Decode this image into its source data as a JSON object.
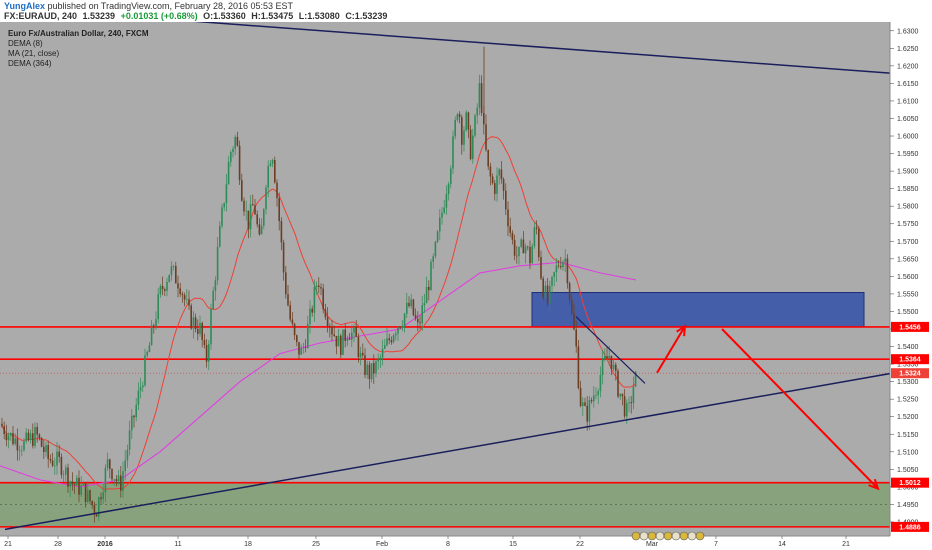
{
  "header": {
    "user": "YungAlex",
    "published": "published on TradingView.com, February 28, 2016 05:53 EST",
    "symbol": "FX:EURAUD, 240",
    "last": "1.53239",
    "change": "+0.01031 (+0.68%)",
    "open": "O:1.53360",
    "high": "H:1.53475",
    "low": "L:1.53080",
    "close": "C:1.53239"
  },
  "legend": {
    "title": "Euro Fx/Australian Dollar, 240, FXCM",
    "ind1": "DEMA (8)",
    "ind2": "MA (21, close)",
    "ind3": "DEMA (364)"
  },
  "colors": {
    "background": "#ababab",
    "up": "#2e8b57",
    "down": "#6b3e21",
    "red": "#ff0000",
    "ma": "#ee4036",
    "dema364": "#e040e0",
    "trend": "#1a1f5c",
    "zone_blue": "#3350a8",
    "zone_green": "#6b9a5a"
  },
  "chart_data": {
    "type": "candlestick",
    "ylim": [
      1.486,
      1.6325
    ],
    "yticks": [
      1.63,
      1.625,
      1.62,
      1.615,
      1.61,
      1.605,
      1.6,
      1.595,
      1.59,
      1.585,
      1.58,
      1.575,
      1.57,
      1.565,
      1.56,
      1.555,
      1.55,
      1.545,
      1.54,
      1.535,
      1.53,
      1.525,
      1.52,
      1.515,
      1.51,
      1.505,
      1.5,
      1.495,
      1.49
    ],
    "xticks": [
      "21",
      "28",
      "2016",
      "11",
      "18",
      "25",
      "Feb",
      "8",
      "15",
      "22",
      "Mar",
      "7",
      "14",
      "21"
    ],
    "price_labels": [
      {
        "value": 1.5456,
        "text": "1.5456",
        "color": "#ff0000"
      },
      {
        "value": 1.5364,
        "text": "1.5364",
        "color": "#ff0000"
      },
      {
        "value": 1.5324,
        "text": "1.5324",
        "color": "#ee4036"
      },
      {
        "value": 1.5012,
        "text": "1.5012",
        "color": "#ff0000"
      },
      {
        "value": 1.4886,
        "text": "1.4886",
        "color": "#ff0000"
      }
    ],
    "horizontal_lines": [
      1.5456,
      1.5364,
      1.5012,
      1.4886
    ],
    "price_path": [
      [
        0,
        1.518
      ],
      [
        12,
        1.514
      ],
      [
        24,
        1.512
      ],
      [
        36,
        1.515
      ],
      [
        48,
        1.508
      ],
      [
        60,
        1.507
      ],
      [
        72,
        1.501
      ],
      [
        84,
        1.499
      ],
      [
        96,
        1.493
      ],
      [
        108,
        1.507
      ],
      [
        120,
        1.5
      ],
      [
        130,
        1.515
      ],
      [
        140,
        1.528
      ],
      [
        150,
        1.541
      ],
      [
        160,
        1.555
      ],
      [
        170,
        1.562
      ],
      [
        180,
        1.558
      ],
      [
        190,
        1.548
      ],
      [
        200,
        1.545
      ],
      [
        206,
        1.535
      ],
      [
        212,
        1.552
      ],
      [
        218,
        1.568
      ],
      [
        224,
        1.582
      ],
      [
        230,
        1.595
      ],
      [
        236,
        1.6
      ],
      [
        242,
        1.584
      ],
      [
        248,
        1.575
      ],
      [
        254,
        1.581
      ],
      [
        260,
        1.568
      ],
      [
        266,
        1.588
      ],
      [
        272,
        1.597
      ],
      [
        278,
        1.58
      ],
      [
        284,
        1.56
      ],
      [
        290,
        1.548
      ],
      [
        296,
        1.54
      ],
      [
        302,
        1.538
      ],
      [
        310,
        1.548
      ],
      [
        318,
        1.56
      ],
      [
        324,
        1.552
      ],
      [
        332,
        1.545
      ],
      [
        340,
        1.54
      ],
      [
        348,
        1.545
      ],
      [
        356,
        1.542
      ],
      [
        362,
        1.535
      ],
      [
        370,
        1.532
      ],
      [
        378,
        1.535
      ],
      [
        386,
        1.54
      ],
      [
        394,
        1.545
      ],
      [
        402,
        1.548
      ],
      [
        410,
        1.552
      ],
      [
        418,
        1.545
      ],
      [
        426,
        1.555
      ],
      [
        434,
        1.565
      ],
      [
        440,
        1.575
      ],
      [
        446,
        1.585
      ],
      [
        452,
        1.595
      ],
      [
        458,
        1.61
      ],
      [
        462,
        1.6
      ],
      [
        466,
        1.605
      ],
      [
        470,
        1.595
      ],
      [
        476,
        1.605
      ],
      [
        480,
        1.615
      ],
      [
        484,
        1.6
      ],
      [
        488,
        1.59
      ],
      [
        494,
        1.585
      ],
      [
        500,
        1.59
      ],
      [
        506,
        1.58
      ],
      [
        512,
        1.57
      ],
      [
        518,
        1.565
      ],
      [
        524,
        1.57
      ],
      [
        530,
        1.565
      ],
      [
        536,
        1.575
      ],
      [
        542,
        1.558
      ],
      [
        548,
        1.552
      ],
      [
        554,
        1.56
      ],
      [
        560,
        1.565
      ],
      [
        566,
        1.565
      ],
      [
        572,
        1.548
      ],
      [
        576,
        1.54
      ],
      [
        580,
        1.525
      ],
      [
        586,
        1.52
      ],
      [
        592,
        1.525
      ],
      [
        598,
        1.53
      ],
      [
        604,
        1.535
      ],
      [
        610,
        1.538
      ],
      [
        616,
        1.53
      ],
      [
        622,
        1.525
      ],
      [
        628,
        1.52
      ],
      [
        634,
        1.53
      ],
      [
        638,
        1.532
      ]
    ],
    "dema364_path": [
      [
        0,
        1.506
      ],
      [
        40,
        1.502
      ],
      [
        80,
        1.5
      ],
      [
        120,
        1.502
      ],
      [
        160,
        1.51
      ],
      [
        200,
        1.52
      ],
      [
        240,
        1.53
      ],
      [
        280,
        1.538
      ],
      [
        320,
        1.541
      ],
      [
        360,
        1.543
      ],
      [
        400,
        1.545
      ],
      [
        440,
        1.553
      ],
      [
        480,
        1.561
      ],
      [
        520,
        1.563
      ],
      [
        560,
        1.564
      ],
      [
        600,
        1.561
      ],
      [
        636,
        1.559
      ]
    ],
    "zones": [
      {
        "name": "resistance-zone",
        "x0": 532,
        "x1": 864,
        "y0": 1.5456,
        "y1": 1.5554
      },
      {
        "name": "support-zone",
        "x0": 0,
        "x1": 890,
        "y0": 1.4886,
        "y1": 1.5012
      }
    ],
    "trendlines": [
      {
        "x0": 105,
        "y0": 1.6346,
        "x1": 900,
        "y1": 1.6177
      },
      {
        "x0": 5,
        "y0": 1.4879,
        "x1": 900,
        "y1": 1.5328
      },
      {
        "x0": 576,
        "y0": 1.5485,
        "x1": 645,
        "y1": 1.5295
      }
    ],
    "arrows": [
      {
        "x0": 657,
        "y0": 1.5325,
        "x1": 685,
        "y1": 1.5458
      },
      {
        "x0": 722,
        "y0": 1.545,
        "x1": 878,
        "y1": 1.4995
      }
    ]
  }
}
